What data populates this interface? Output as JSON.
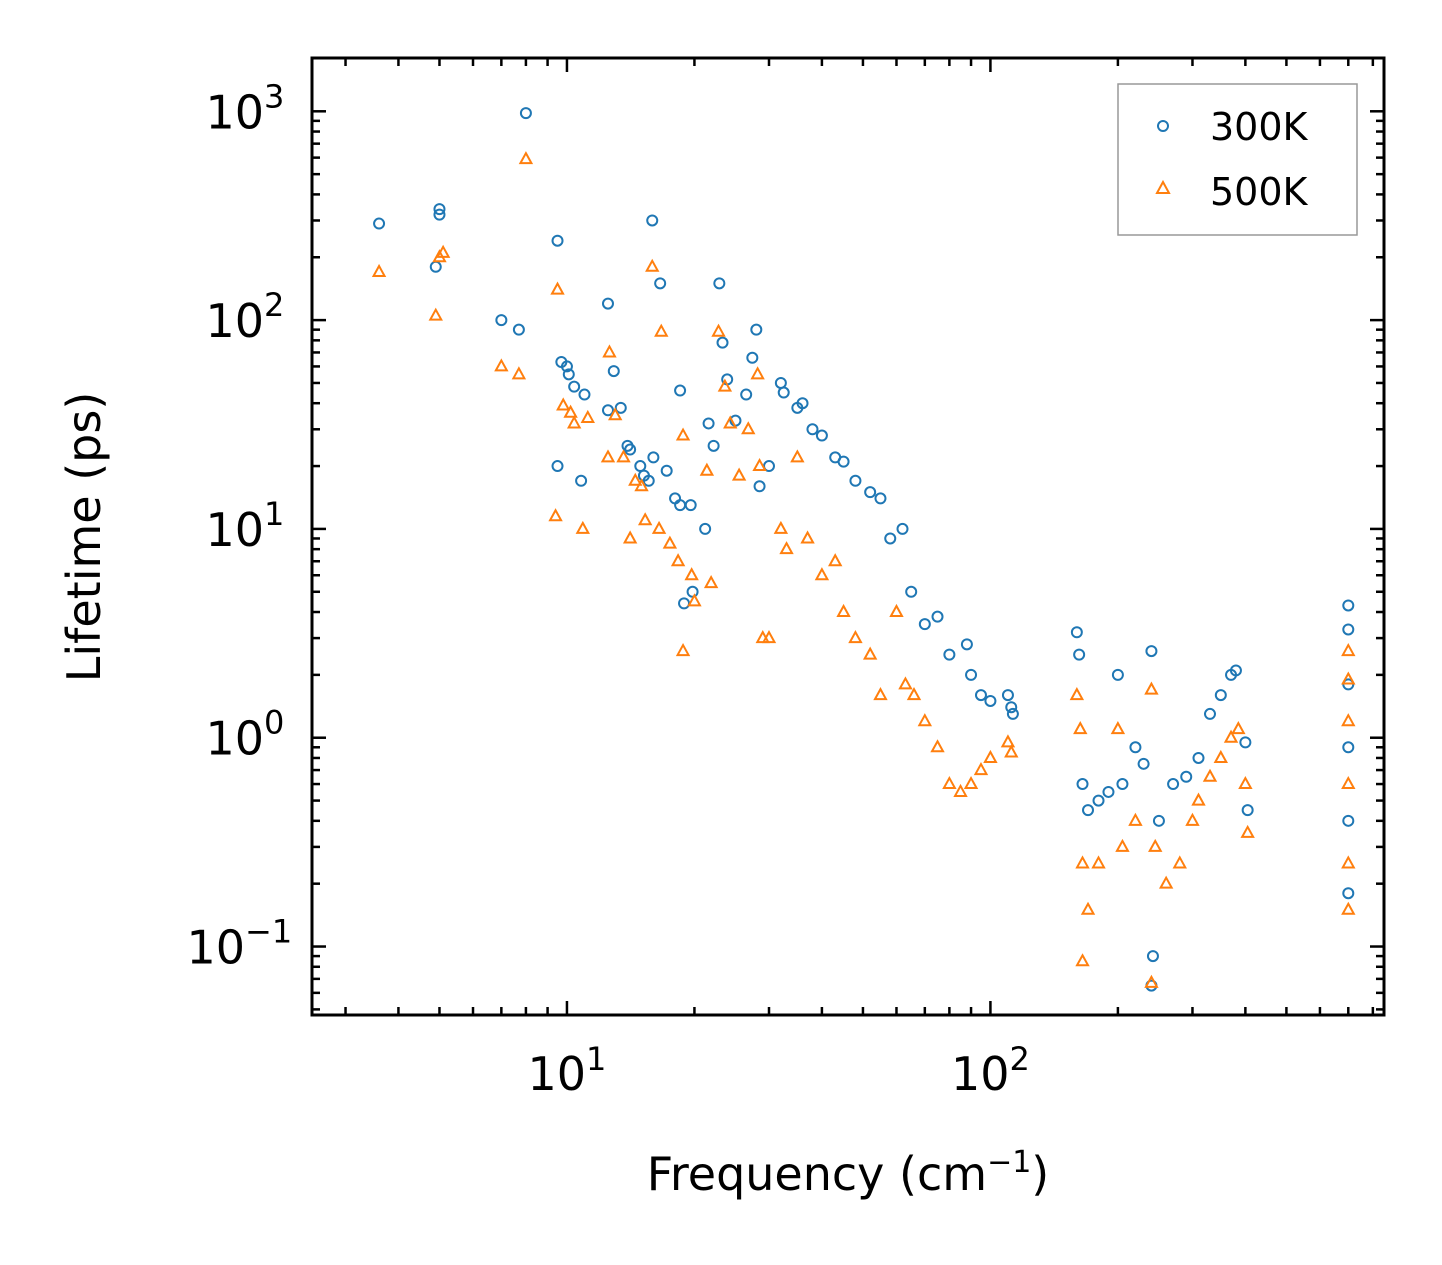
{
  "chart_data": {
    "type": "scatter",
    "xscale": "log",
    "yscale": "log",
    "xlabel": "Frequency (cm",
    "xlabel_sup": "−1",
    "xlabel_end": ")",
    "ylabel": "Lifetime (ps)",
    "xlim": [
      2.5,
      850
    ],
    "ylim": [
      0.047,
      1800
    ],
    "x_ticks": [
      {
        "value": 10,
        "base": "10",
        "exp": "1"
      },
      {
        "value": 100,
        "base": "10",
        "exp": "2"
      }
    ],
    "y_ticks": [
      {
        "value": 0.1,
        "base": "10",
        "exp": "−1"
      },
      {
        "value": 1,
        "base": "10",
        "exp": "0"
      },
      {
        "value": 10,
        "base": "10",
        "exp": "1"
      },
      {
        "value": 100,
        "base": "10",
        "exp": "2"
      },
      {
        "value": 1000,
        "base": "10",
        "exp": "3"
      }
    ],
    "legend_position": "top-right",
    "series": [
      {
        "name": "300K",
        "marker": "circle",
        "color": "#1f77b4",
        "points": [
          [
            3.6,
            290
          ],
          [
            4.9,
            180
          ],
          [
            5.0,
            340
          ],
          [
            5.0,
            320
          ],
          [
            7.0,
            100
          ],
          [
            7.7,
            90
          ],
          [
            8.0,
            980
          ],
          [
            9.5,
            240
          ],
          [
            9.5,
            20
          ],
          [
            9.7,
            63
          ],
          [
            10.0,
            60
          ],
          [
            10.1,
            55
          ],
          [
            10.4,
            48
          ],
          [
            10.8,
            17
          ],
          [
            11.0,
            44
          ],
          [
            12.5,
            120
          ],
          [
            12.9,
            57
          ],
          [
            12.5,
            37
          ],
          [
            13.4,
            38
          ],
          [
            13.9,
            25
          ],
          [
            14.1,
            24
          ],
          [
            14.9,
            20
          ],
          [
            15.2,
            18
          ],
          [
            15.6,
            17
          ],
          [
            15.9,
            300
          ],
          [
            16.0,
            22
          ],
          [
            16.6,
            150
          ],
          [
            17.2,
            19
          ],
          [
            18.0,
            14
          ],
          [
            18.5,
            13
          ],
          [
            18.9,
            4.4
          ],
          [
            18.5,
            46
          ],
          [
            19.6,
            13
          ],
          [
            19.8,
            5
          ],
          [
            21.2,
            10
          ],
          [
            21.6,
            32
          ],
          [
            22.2,
            25
          ],
          [
            22.9,
            150
          ],
          [
            23.3,
            78
          ],
          [
            23.9,
            52
          ],
          [
            25.0,
            33
          ],
          [
            26.5,
            44
          ],
          [
            27.4,
            66
          ],
          [
            28.0,
            90
          ],
          [
            28.5,
            16
          ],
          [
            30.0,
            20
          ],
          [
            32.0,
            50
          ],
          [
            32.5,
            45
          ],
          [
            35.0,
            38
          ],
          [
            36.0,
            40
          ],
          [
            38.0,
            30
          ],
          [
            40.0,
            28
          ],
          [
            43.0,
            22
          ],
          [
            45.0,
            21
          ],
          [
            48.0,
            17
          ],
          [
            52.0,
            15
          ],
          [
            55.0,
            14
          ],
          [
            58.0,
            9
          ],
          [
            62.0,
            10
          ],
          [
            65.0,
            5
          ],
          [
            70.0,
            3.5
          ],
          [
            75.0,
            3.8
          ],
          [
            80.0,
            2.5
          ],
          [
            88.0,
            2.8
          ],
          [
            90.0,
            2
          ],
          [
            95.0,
            1.6
          ],
          [
            100.0,
            1.5
          ],
          [
            110.0,
            1.6
          ],
          [
            112.0,
            1.4
          ],
          [
            113.0,
            1.3
          ],
          [
            160.0,
            3.2
          ],
          [
            162.0,
            2.5
          ],
          [
            165.0,
            0.6
          ],
          [
            170.0,
            0.45
          ],
          [
            180.0,
            0.5
          ],
          [
            190.0,
            0.55
          ],
          [
            200.0,
            2.0
          ],
          [
            205.0,
            0.6
          ],
          [
            220.0,
            0.9
          ],
          [
            230.0,
            0.75
          ],
          [
            240.0,
            2.6
          ],
          [
            240.0,
            0.065
          ],
          [
            242.0,
            0.09
          ],
          [
            250.0,
            0.4
          ],
          [
            270.0,
            0.6
          ],
          [
            290.0,
            0.65
          ],
          [
            310.0,
            0.8
          ],
          [
            330.0,
            1.3
          ],
          [
            350.0,
            1.6
          ],
          [
            370.0,
            2.0
          ],
          [
            380.0,
            2.1
          ],
          [
            400.0,
            0.95
          ],
          [
            405.0,
            0.45
          ],
          [
            700.0,
            4.3
          ],
          [
            700.0,
            3.3
          ],
          [
            700.0,
            1.8
          ],
          [
            700.0,
            0.9
          ],
          [
            700.0,
            0.4
          ],
          [
            700.0,
            0.18
          ]
        ]
      },
      {
        "name": "500K",
        "marker": "triangle",
        "color": "#ff7f0e",
        "points": [
          [
            3.6,
            170
          ],
          [
            4.9,
            105
          ],
          [
            5.0,
            200
          ],
          [
            5.1,
            210
          ],
          [
            7.0,
            60
          ],
          [
            7.7,
            55
          ],
          [
            8.0,
            590
          ],
          [
            9.5,
            140
          ],
          [
            9.4,
            11.5
          ],
          [
            9.8,
            39
          ],
          [
            10.2,
            36
          ],
          [
            10.4,
            32
          ],
          [
            10.9,
            10
          ],
          [
            11.2,
            34
          ],
          [
            12.6,
            70
          ],
          [
            13.0,
            35
          ],
          [
            12.5,
            22
          ],
          [
            13.6,
            22
          ],
          [
            14.1,
            9
          ],
          [
            14.5,
            17
          ],
          [
            15.0,
            16
          ],
          [
            15.3,
            11
          ],
          [
            15.9,
            180
          ],
          [
            16.5,
            10
          ],
          [
            16.7,
            88
          ],
          [
            17.5,
            8.5
          ],
          [
            18.3,
            7
          ],
          [
            18.8,
            2.6
          ],
          [
            18.8,
            28
          ],
          [
            19.7,
            6
          ],
          [
            20.0,
            4.5
          ],
          [
            21.4,
            19
          ],
          [
            21.9,
            5.5
          ],
          [
            22.8,
            88
          ],
          [
            23.6,
            48
          ],
          [
            24.3,
            32
          ],
          [
            25.5,
            18
          ],
          [
            26.8,
            30
          ],
          [
            28.2,
            55
          ],
          [
            28.5,
            20
          ],
          [
            29.0,
            3
          ],
          [
            30.0,
            3
          ],
          [
            32.0,
            10
          ],
          [
            33.0,
            8
          ],
          [
            35.0,
            22
          ],
          [
            37.0,
            9
          ],
          [
            40.0,
            6
          ],
          [
            43.0,
            7
          ],
          [
            45.0,
            4
          ],
          [
            48.0,
            3
          ],
          [
            52.0,
            2.5
          ],
          [
            55.0,
            1.6
          ],
          [
            60.0,
            4
          ],
          [
            63.0,
            1.8
          ],
          [
            66.0,
            1.6
          ],
          [
            70.0,
            1.2
          ],
          [
            75.0,
            0.9
          ],
          [
            80.0,
            0.6
          ],
          [
            85.0,
            0.55
          ],
          [
            90.0,
            0.6
          ],
          [
            95.0,
            0.7
          ],
          [
            100.0,
            0.8
          ],
          [
            110.0,
            0.95
          ],
          [
            112.0,
            0.85
          ],
          [
            160.0,
            1.6
          ],
          [
            163.0,
            1.1
          ],
          [
            165.0,
            0.25
          ],
          [
            170.0,
            0.15
          ],
          [
            165.0,
            0.085
          ],
          [
            180.0,
            0.25
          ],
          [
            200.0,
            1.1
          ],
          [
            205.0,
            0.3
          ],
          [
            220.0,
            0.4
          ],
          [
            240.0,
            1.7
          ],
          [
            240.0,
            0.067
          ],
          [
            245.0,
            0.3
          ],
          [
            260.0,
            0.2
          ],
          [
            280.0,
            0.25
          ],
          [
            300.0,
            0.4
          ],
          [
            310.0,
            0.5
          ],
          [
            330.0,
            0.65
          ],
          [
            350.0,
            0.8
          ],
          [
            370.0,
            1.0
          ],
          [
            385.0,
            1.1
          ],
          [
            400.0,
            0.6
          ],
          [
            405.0,
            0.35
          ],
          [
            700.0,
            2.6
          ],
          [
            700.0,
            1.9
          ],
          [
            700.0,
            1.2
          ],
          [
            700.0,
            0.6
          ],
          [
            700.0,
            0.25
          ],
          [
            700.0,
            0.15
          ]
        ]
      }
    ]
  }
}
